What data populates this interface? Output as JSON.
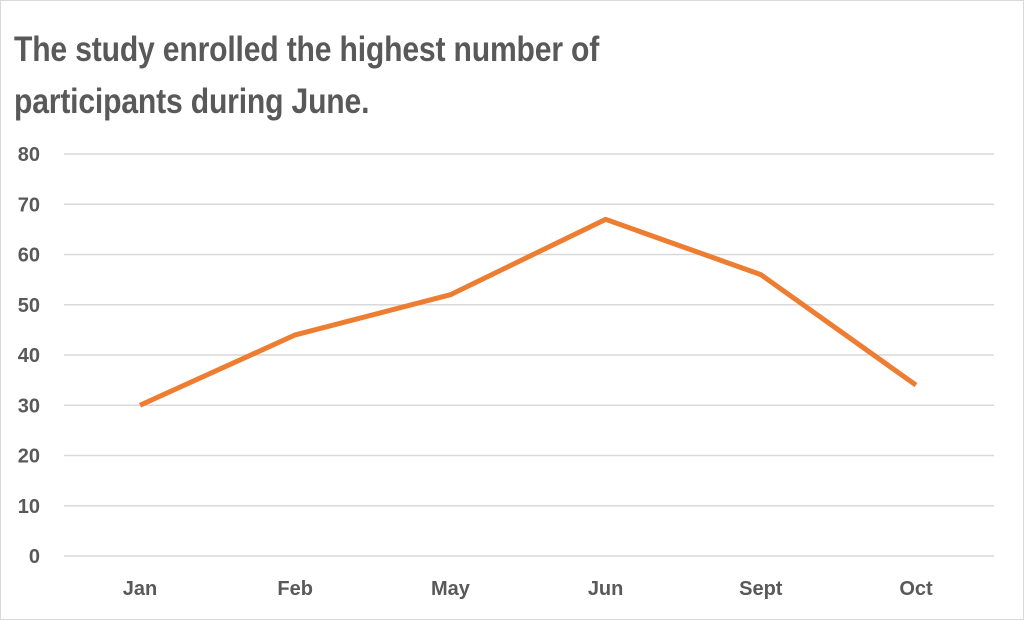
{
  "chart_data": {
    "type": "line",
    "title": "The study enrolled the highest number of participants during June.",
    "xlabel": "",
    "ylabel": "",
    "categories": [
      "Jan",
      "Feb",
      "May",
      "Jun",
      "Sept",
      "Oct"
    ],
    "series": [
      {
        "values": [
          30,
          44,
          52,
          67,
          56,
          34
        ]
      }
    ],
    "ylim": [
      0,
      80
    ],
    "yticks": [
      "0",
      "10",
      "20",
      "30",
      "40",
      "50",
      "60",
      "70",
      "80"
    ],
    "grid": true,
    "legend": "none",
    "colors": {
      "line": "#ED7D31",
      "grid": "#d9d9d9",
      "text": "#595959"
    }
  }
}
